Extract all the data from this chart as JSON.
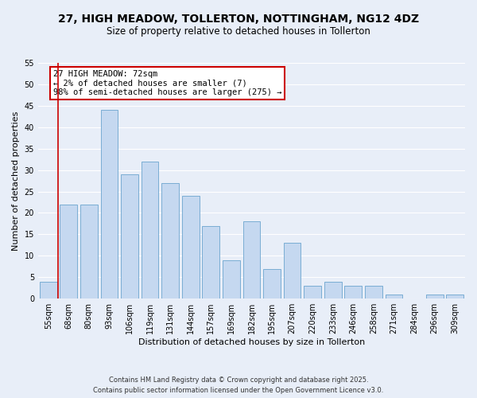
{
  "title": "27, HIGH MEADOW, TOLLERTON, NOTTINGHAM, NG12 4DZ",
  "subtitle": "Size of property relative to detached houses in Tollerton",
  "xlabel": "Distribution of detached houses by size in Tollerton",
  "ylabel": "Number of detached properties",
  "categories": [
    "55sqm",
    "68sqm",
    "80sqm",
    "93sqm",
    "106sqm",
    "119sqm",
    "131sqm",
    "144sqm",
    "157sqm",
    "169sqm",
    "182sqm",
    "195sqm",
    "207sqm",
    "220sqm",
    "233sqm",
    "246sqm",
    "258sqm",
    "271sqm",
    "284sqm",
    "296sqm",
    "309sqm"
  ],
  "values": [
    4,
    22,
    22,
    44,
    29,
    32,
    27,
    24,
    17,
    9,
    18,
    7,
    13,
    3,
    4,
    3,
    3,
    1,
    0,
    1,
    1
  ],
  "bar_color": "#c5d8f0",
  "bar_edge_color": "#7aadd4",
  "vline_color": "#cc0000",
  "vline_index": 0.5,
  "ylim": [
    0,
    55
  ],
  "yticks": [
    0,
    5,
    10,
    15,
    20,
    25,
    30,
    35,
    40,
    45,
    50,
    55
  ],
  "annotation_title": "27 HIGH MEADOW: 72sqm",
  "annotation_line1": "← 2% of detached houses are smaller (7)",
  "annotation_line2": "98% of semi-detached houses are larger (275) →",
  "footer1": "Contains HM Land Registry data © Crown copyright and database right 2025.",
  "footer2": "Contains public sector information licensed under the Open Government Licence v3.0.",
  "bg_color": "#e8eef8",
  "plot_bg_color": "#e8eef8",
  "grid_color": "#ffffff",
  "annotation_box_color": "#ffffff",
  "annotation_box_edge": "#cc0000",
  "title_fontsize": 10,
  "subtitle_fontsize": 8.5,
  "axis_label_fontsize": 8,
  "tick_fontsize": 7,
  "annotation_fontsize": 7.5,
  "footer_fontsize": 6
}
